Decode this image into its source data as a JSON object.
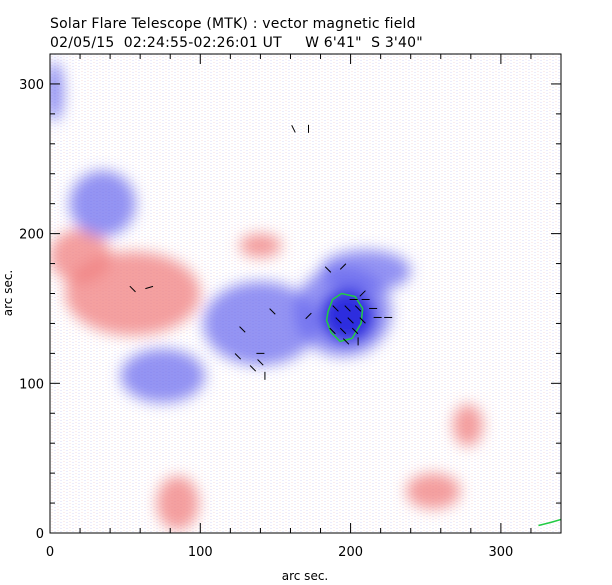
{
  "header": {
    "title_line1": "Solar Flare Telescope (MTK) : vector magnetic field",
    "title_line2": "02/05/15  02:24:55-02:26:01 UT     W 6'41\"  S 3'40\""
  },
  "axes": {
    "xlabel": "arc sec.",
    "ylabel": "arc sec.",
    "xlim": [
      0,
      340
    ],
    "ylim": [
      0,
      320
    ],
    "x_ticks": [
      "0",
      "100",
      "200",
      "300"
    ],
    "y_ticks": [
      "0",
      "100",
      "200",
      "300"
    ]
  },
  "magnetogram": {
    "positive_color": "#f08080",
    "negative_color": "#6666ee",
    "contour_color": "#22cc44",
    "positive_regions": [
      {
        "x": 55,
        "y": 160,
        "rx": 45,
        "ry": 28
      },
      {
        "x": 20,
        "y": 185,
        "rx": 20,
        "ry": 18
      },
      {
        "x": 140,
        "y": 192,
        "rx": 14,
        "ry": 8
      },
      {
        "x": 85,
        "y": 20,
        "rx": 14,
        "ry": 18
      },
      {
        "x": 255,
        "y": 28,
        "rx": 18,
        "ry": 12
      },
      {
        "x": 278,
        "y": 72,
        "rx": 10,
        "ry": 14
      }
    ],
    "negative_regions": [
      {
        "x": 35,
        "y": 220,
        "rx": 22,
        "ry": 22
      },
      {
        "x": 195,
        "y": 148,
        "rx": 32,
        "ry": 30
      },
      {
        "x": 210,
        "y": 175,
        "rx": 30,
        "ry": 14
      },
      {
        "x": 140,
        "y": 140,
        "rx": 38,
        "ry": 28
      },
      {
        "x": 75,
        "y": 105,
        "rx": 28,
        "ry": 18
      },
      {
        "x": 3,
        "y": 295,
        "rx": 6,
        "ry": 20
      }
    ],
    "strong_negative": [
      {
        "x": 198,
        "y": 145,
        "rx": 18,
        "ry": 18
      }
    ],
    "contours": [
      [
        [
          185,
          148
        ],
        [
          188,
          156
        ],
        [
          194,
          160
        ],
        [
          203,
          158
        ],
        [
          208,
          150
        ],
        [
          207,
          140
        ],
        [
          201,
          130
        ],
        [
          193,
          128
        ],
        [
          187,
          134
        ],
        [
          184,
          142
        ],
        [
          185,
          148
        ]
      ],
      [
        [
          325,
          5
        ],
        [
          333,
          7
        ],
        [
          340,
          9
        ]
      ]
    ]
  }
}
